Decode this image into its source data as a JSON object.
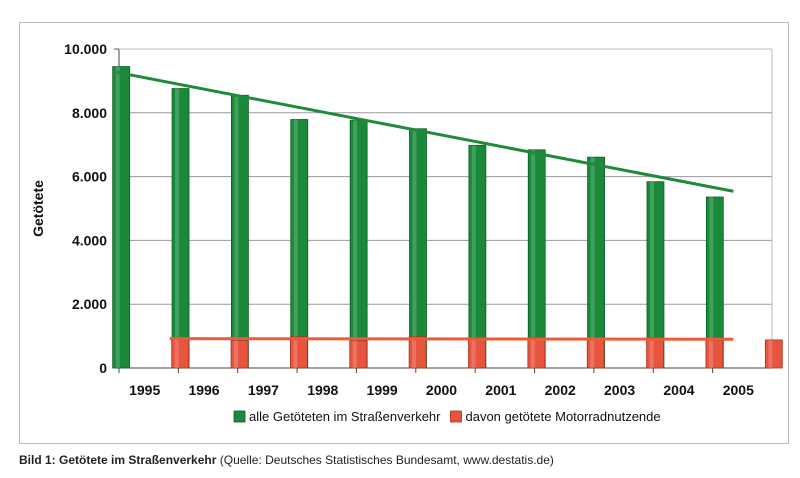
{
  "chart_data": {
    "type": "bar",
    "ylabel": "Getötete",
    "xlabel": "",
    "ylim": [
      0,
      10000
    ],
    "y_ticks": [
      "0",
      "2.000",
      "4.000",
      "6.000",
      "8.000",
      "10.000"
    ],
    "grid": true,
    "legend_position": "bottom",
    "categories": [
      "1995",
      "1996",
      "1997",
      "1998",
      "1999",
      "2000",
      "2001",
      "2002",
      "2003",
      "2004",
      "2005"
    ],
    "series": [
      {
        "name": "alle Getöteten im Straßenverkehr",
        "color": "#1a8a3a",
        "values": [
          9450,
          8760,
          8550,
          7790,
          7770,
          7500,
          6980,
          6840,
          6610,
          5840,
          5360
        ],
        "trendline": {
          "color": "#1e8a3a",
          "start": 9270,
          "end": 5540
        }
      },
      {
        "name": "davon getötete Motorradnutzende",
        "color": "#e8553f",
        "values": [
          930,
          860,
          980,
          850,
          980,
          950,
          960,
          910,
          950,
          860,
          880
        ],
        "trendline": {
          "color": "#ef5a3a",
          "start": 920,
          "end": 900
        }
      }
    ]
  },
  "caption": {
    "label": "Bild 1:",
    "title": "Getötete im Straßenverkehr",
    "source": "(Quelle: Deutsches Statistisches Bundesamt, www.destatis.de)"
  }
}
